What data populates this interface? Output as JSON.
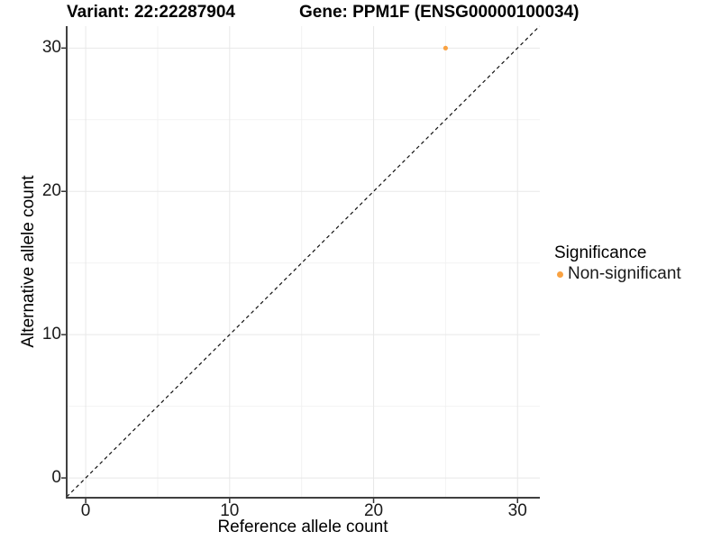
{
  "plot": {
    "title_variant": "Variant: 22:22287904",
    "title_gene": "Gene: PPM1F (ENSG00000100034)"
  },
  "chart_data": {
    "type": "scatter",
    "title": "Variant: 22:22287904    Gene: PPM1F (ENSG00000100034)",
    "title_variant": "Variant: 22:22287904",
    "title_gene": "Gene: PPM1F (ENSG00000100034)",
    "xlabel": "Reference allele count",
    "ylabel": "Alternative allele count",
    "xlim": [
      -1.32,
      31.55
    ],
    "ylim": [
      -1.38,
      31.53
    ],
    "x_ticks": [
      0,
      10,
      20,
      30
    ],
    "y_ticks": [
      0,
      10,
      20,
      30
    ],
    "x_minor_gridlines": [
      5,
      15,
      25
    ],
    "y_minor_gridlines": [
      5,
      15,
      25
    ],
    "grid": "on",
    "legend_position": "right",
    "series": [
      {
        "name": "Non-significant",
        "color": "#F9A242",
        "points": [
          {
            "x": 25,
            "y": 30
          }
        ]
      }
    ],
    "reference_line": {
      "slope": 1,
      "intercept": 0,
      "style": "dashed",
      "color": "#111111"
    },
    "legend": {
      "title": "Significance",
      "entries": [
        {
          "label": "Non-significant",
          "color": "#F9A242"
        }
      ]
    }
  },
  "colors": {
    "background": "#FFFFFF",
    "grid_major": "#E8E8E8",
    "grid_minor": "#F2F2F2",
    "axis_line": "#404040",
    "tick_mark": "#333333",
    "point_orange": "#F9A242",
    "text": "#000000"
  }
}
